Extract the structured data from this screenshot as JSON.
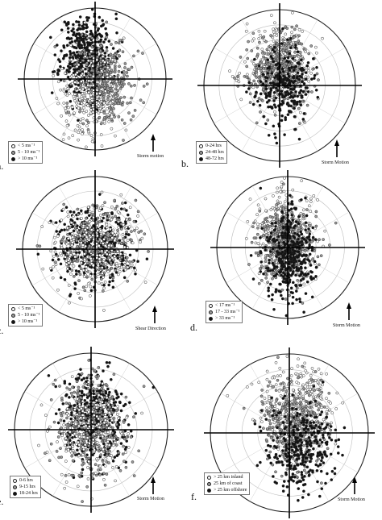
{
  "chart_data": [
    {
      "type": "scatter",
      "panel": "a.",
      "legend": [
        {
          "label": "< 5 ms⁻¹",
          "color": "#ffffff"
        },
        {
          "label": "5 - 10 ms⁻¹",
          "color": "#9a9a9a"
        },
        {
          "label": "> 10 ms⁻¹",
          "color": "#111111"
        }
      ],
      "motion_label": "Storm motion",
      "title": "",
      "xlabel": "",
      "ylabel": "",
      "rings": 5,
      "grid": true,
      "legend_position": "bottom-left",
      "clouds": [
        {
          "color": "#111111",
          "n": 500,
          "cx": -0.12,
          "cy": 0.32,
          "sx": 0.18,
          "sy": 0.3,
          "seed": 11
        },
        {
          "color": "#9a9a9a",
          "n": 420,
          "cx": 0.12,
          "cy": -0.05,
          "sx": 0.2,
          "sy": 0.32,
          "seed": 12
        },
        {
          "color": "#ffffff",
          "n": 220,
          "cx": -0.08,
          "cy": -0.3,
          "sx": 0.22,
          "sy": 0.33,
          "seed": 13
        }
      ]
    },
    {
      "type": "scatter",
      "panel": "b.",
      "legend": [
        {
          "label": "0-24 hrs",
          "color": "#ffffff"
        },
        {
          "label": "24-48 hrs",
          "color": "#9a9a9a"
        },
        {
          "label": "48-72 hrs",
          "color": "#111111"
        }
      ],
      "motion_label": "Storm Motion",
      "title": "",
      "xlabel": "",
      "ylabel": "",
      "rings": 5,
      "grid": true,
      "legend_position": "bottom-left",
      "clouds": [
        {
          "color": "#ffffff",
          "n": 260,
          "cx": 0.02,
          "cy": 0.28,
          "sx": 0.22,
          "sy": 0.25,
          "seed": 21
        },
        {
          "color": "#9a9a9a",
          "n": 380,
          "cx": 0.0,
          "cy": 0.18,
          "sx": 0.2,
          "sy": 0.24,
          "seed": 22
        },
        {
          "color": "#111111",
          "n": 260,
          "cx": 0.05,
          "cy": -0.02,
          "sx": 0.18,
          "sy": 0.25,
          "seed": 23
        }
      ]
    },
    {
      "type": "scatter",
      "panel": "c.",
      "legend": [
        {
          "label": "< 5 ms⁻¹",
          "color": "#ffffff"
        },
        {
          "label": "5 - 10 ms⁻¹",
          "color": "#9a9a9a"
        },
        {
          "label": "> 10 ms⁻¹",
          "color": "#111111"
        }
      ],
      "motion_label": "Shear Direction",
      "title": "",
      "xlabel": "",
      "ylabel": "",
      "rings": 5,
      "grid": true,
      "legend_position": "bottom-left",
      "clouds": [
        {
          "color": "#111111",
          "n": 450,
          "cx": 0.0,
          "cy": 0.05,
          "sx": 0.26,
          "sy": 0.24,
          "seed": 31
        },
        {
          "color": "#9a9a9a",
          "n": 320,
          "cx": -0.02,
          "cy": 0.05,
          "sx": 0.28,
          "sy": 0.26,
          "seed": 32
        },
        {
          "color": "#ffffff",
          "n": 260,
          "cx": 0.0,
          "cy": 0.02,
          "sx": 0.3,
          "sy": 0.28,
          "seed": 33
        }
      ]
    },
    {
      "type": "scatter",
      "panel": "d.",
      "legend": [
        {
          "label": "< 17 ms⁻¹",
          "color": "#ffffff"
        },
        {
          "label": "17 - 33 ms⁻¹",
          "color": "#9a9a9a"
        },
        {
          "label": "> 33 ms⁻¹",
          "color": "#111111"
        }
      ],
      "motion_label": "Storm Motion",
      "title": "",
      "xlabel": "",
      "ylabel": "",
      "rings": 5,
      "grid": true,
      "legend_position": "bottom-left",
      "clouds": [
        {
          "color": "#ffffff",
          "n": 240,
          "cx": -0.05,
          "cy": 0.25,
          "sx": 0.22,
          "sy": 0.3,
          "seed": 41
        },
        {
          "color": "#9a9a9a",
          "n": 420,
          "cx": -0.02,
          "cy": 0.02,
          "sx": 0.2,
          "sy": 0.3,
          "seed": 42
        },
        {
          "color": "#111111",
          "n": 380,
          "cx": 0.02,
          "cy": -0.1,
          "sx": 0.18,
          "sy": 0.32,
          "seed": 43
        }
      ]
    },
    {
      "type": "scatter",
      "panel": "e.",
      "legend": [
        {
          "label": "0-6 hrs",
          "color": "#ffffff"
        },
        {
          "label": "9-15 hrs",
          "color": "#9a9a9a"
        },
        {
          "label": "18-24 hrs",
          "color": "#111111"
        }
      ],
      "motion_label": "Storm Motion",
      "title": "",
      "xlabel": "",
      "ylabel": "",
      "rings": 5,
      "grid": true,
      "legend_position": "bottom-left",
      "clouds": [
        {
          "color": "#111111",
          "n": 460,
          "cx": 0.05,
          "cy": 0.12,
          "sx": 0.2,
          "sy": 0.3,
          "seed": 51
        },
        {
          "color": "#9a9a9a",
          "n": 380,
          "cx": 0.0,
          "cy": 0.05,
          "sx": 0.22,
          "sy": 0.32,
          "seed": 52
        },
        {
          "color": "#ffffff",
          "n": 200,
          "cx": -0.02,
          "cy": -0.05,
          "sx": 0.25,
          "sy": 0.3,
          "seed": 53
        }
      ]
    },
    {
      "type": "scatter",
      "panel": "f.",
      "legend": [
        {
          "label": "> 25 km inland",
          "color": "#ffffff"
        },
        {
          "label": "25 km of coast",
          "color": "#9a9a9a"
        },
        {
          "label": "> 25 km offshore",
          "color": "#111111"
        }
      ],
      "motion_label": "Storm Motion",
      "title": "",
      "xlabel": "",
      "ylabel": "",
      "rings": 5,
      "grid": true,
      "legend_position": "bottom-left",
      "clouds": [
        {
          "color": "#ffffff",
          "n": 320,
          "cx": 0.1,
          "cy": 0.35,
          "sx": 0.22,
          "sy": 0.25,
          "seed": 61
        },
        {
          "color": "#9a9a9a",
          "n": 380,
          "cx": 0.05,
          "cy": 0.1,
          "sx": 0.2,
          "sy": 0.28,
          "seed": 62
        },
        {
          "color": "#111111",
          "n": 320,
          "cx": 0.15,
          "cy": -0.2,
          "sx": 0.2,
          "sy": 0.28,
          "seed": 63
        }
      ]
    }
  ]
}
